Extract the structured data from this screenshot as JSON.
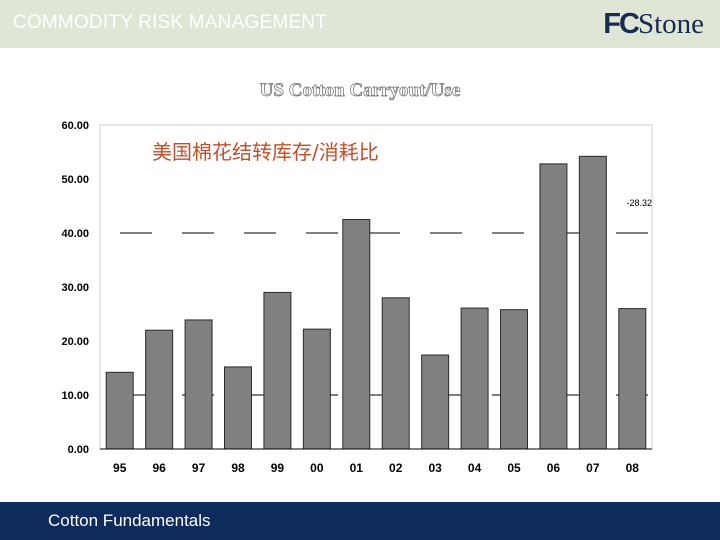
{
  "header": {
    "title": "COMMODITY RISK MANAGEMENT",
    "logo_fc": "FC",
    "logo_stone": "Stone"
  },
  "footer": {
    "text": "Cotton Fundamentals"
  },
  "chart_data": {
    "type": "bar",
    "title": "US Cotton Carryout/Use",
    "subtitle": "美国棉花结转库存/消耗比",
    "annotation": "-28.32",
    "xlabel": "",
    "ylabel": "",
    "categories": [
      "95",
      "96",
      "97",
      "98",
      "99",
      "00",
      "01",
      "02",
      "03",
      "04",
      "05",
      "06",
      "07",
      "08"
    ],
    "values": [
      14.2,
      22.0,
      23.9,
      15.2,
      29.0,
      22.2,
      42.5,
      28.0,
      17.4,
      26.1,
      25.8,
      52.8,
      54.2,
      26.0
    ],
    "ylim": [
      0,
      60
    ],
    "yticks": [
      "0.00",
      "10.00",
      "20.00",
      "30.00",
      "40.00",
      "50.00",
      "60.00"
    ],
    "reference_lines": [
      40,
      10
    ],
    "grid": false,
    "colors": {
      "bar": "#808080",
      "bar_edge": "#2b2b2b",
      "subtitle": "#c0502a",
      "axis": "#000000"
    }
  }
}
